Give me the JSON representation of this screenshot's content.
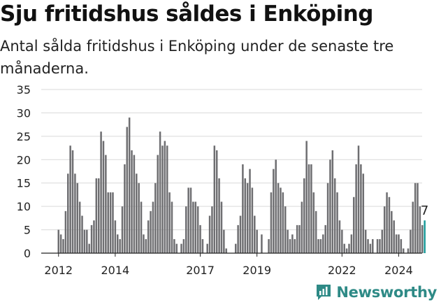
{
  "title": "Sju fritidshus såldes i Enköping",
  "subtitle": "Antal sålda fritidshus i Enköping under de senaste tre månaderna.",
  "brand": {
    "name": "Newsworthy",
    "icon": "newsworthy-logo-icon",
    "color": "#2e8a86"
  },
  "chart_data": {
    "type": "bar",
    "ylim": [
      0,
      35
    ],
    "yticks": [
      0,
      5,
      10,
      15,
      20,
      25,
      30,
      35
    ],
    "grid": true,
    "bar_color": "#6e6e71",
    "highlight_color": "#1a9a99",
    "xticks": [
      {
        "label": "2012",
        "index": 0
      },
      {
        "label": "2014",
        "index": 24
      },
      {
        "label": "2017",
        "index": 60
      },
      {
        "label": "2019",
        "index": 84
      },
      {
        "label": "2022",
        "index": 120
      },
      {
        "label": "2024",
        "index": 144
      }
    ],
    "values": [
      5,
      4,
      3,
      9,
      17,
      23,
      22,
      17,
      15,
      11,
      8,
      5,
      5,
      2,
      6,
      7,
      16,
      16,
      26,
      24,
      21,
      13,
      13,
      13,
      7,
      4,
      3,
      10,
      19,
      27,
      29,
      22,
      21,
      17,
      15,
      11,
      4,
      3,
      7,
      9,
      11,
      15,
      21,
      26,
      23,
      24,
      23,
      13,
      11,
      3,
      2,
      0,
      2,
      3,
      10,
      14,
      14,
      11,
      11,
      10,
      6,
      3,
      0,
      2,
      8,
      10,
      23,
      22,
      16,
      11,
      5,
      1,
      0,
      0,
      0,
      2,
      6,
      8,
      19,
      16,
      15,
      18,
      14,
      8,
      5,
      0,
      4,
      0,
      0,
      3,
      13,
      18,
      20,
      15,
      14,
      13,
      10,
      5,
      3,
      4,
      3,
      6,
      6,
      11,
      16,
      24,
      19,
      19,
      13,
      9,
      3,
      3,
      4,
      6,
      15,
      20,
      22,
      16,
      13,
      7,
      5,
      2,
      1,
      2,
      4,
      12,
      19,
      23,
      19,
      17,
      5,
      3,
      2,
      3,
      0,
      3,
      3,
      5,
      10,
      13,
      12,
      9,
      7,
      4,
      4,
      3,
      1,
      0,
      1,
      5,
      11,
      15,
      15,
      10,
      6,
      7
    ],
    "highlight_index": 155,
    "highlight_label": "7"
  }
}
